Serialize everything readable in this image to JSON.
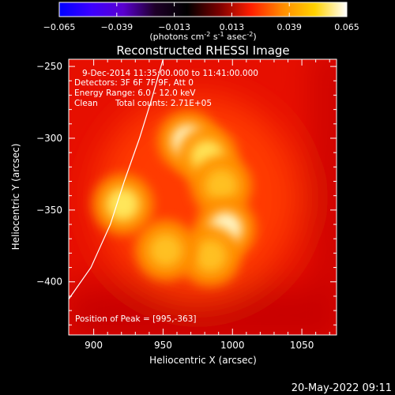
{
  "chart_data": {
    "type": "heatmap",
    "title": "Reconstructed RHESSI Image",
    "colorbar": {
      "min": -0.065,
      "max": 0.065,
      "tick_labels": [
        "-0.065",
        "-0.039",
        "-0.013",
        "0.013",
        "0.039",
        "0.065"
      ],
      "tick_values": [
        -0.065,
        -0.039,
        -0.013,
        0.013,
        0.039,
        0.065
      ],
      "units_main": "(photons cm",
      "units_sup1": "-2",
      "units_mid1": " s",
      "units_sup2": "-1",
      "units_mid2": " asec",
      "units_sup3": "-2",
      "units_end": ")",
      "colormap": [
        "#0000ff",
        "#3c00ff",
        "#5a00d0",
        "#1e0028",
        "#000000",
        "#7a0000",
        "#ff1e00",
        "#ff8c00",
        "#ffd200",
        "#ffffff"
      ]
    },
    "xlabel": "Heliocentric X (arcsec)",
    "ylabel": "Heliocentric Y (arcsec)",
    "xlim": [
      882,
      1075
    ],
    "ylim": [
      -437,
      -245
    ],
    "x_ticks": [
      900,
      950,
      1000,
      1050
    ],
    "y_ticks": [
      -250,
      -300,
      -350,
      -400
    ],
    "x_tick_labels": [
      "900",
      "950",
      "1000",
      "1050"
    ],
    "y_tick_labels": [
      "−250",
      "−300",
      "−350",
      "−400"
    ],
    "annotations": {
      "time_range": "9-Dec-2014 11:35:00.000 to 11:41:00.000",
      "detectors": "Detectors: 3F 6F 7F 9F, Att 0",
      "energy": "Energy Range: 6.0 - 12.0 keV",
      "clean_label": "Clean",
      "total_counts": "Total counts: 2.71E+05",
      "peak": "Position of Peak = [995,-363]"
    },
    "sources": [
      {
        "x": 968,
        "y": -302,
        "peak": 0.06
      },
      {
        "x": 982,
        "y": -313,
        "peak": 0.055
      },
      {
        "x": 992,
        "y": -333,
        "peak": 0.052
      },
      {
        "x": 995,
        "y": -363,
        "peak": 0.065
      },
      {
        "x": 984,
        "y": -382,
        "peak": 0.05
      },
      {
        "x": 952,
        "y": -378,
        "peak": 0.05
      },
      {
        "x": 921,
        "y": -346,
        "peak": 0.055
      }
    ],
    "limb_curve": [
      [
        882,
        -412
      ],
      [
        898,
        -390
      ],
      [
        912,
        -360
      ],
      [
        922,
        -330
      ],
      [
        933,
        -300
      ],
      [
        942,
        -272
      ],
      [
        950,
        -245
      ]
    ]
  },
  "footer": {
    "timestamp": "20-May-2022 09:11"
  }
}
